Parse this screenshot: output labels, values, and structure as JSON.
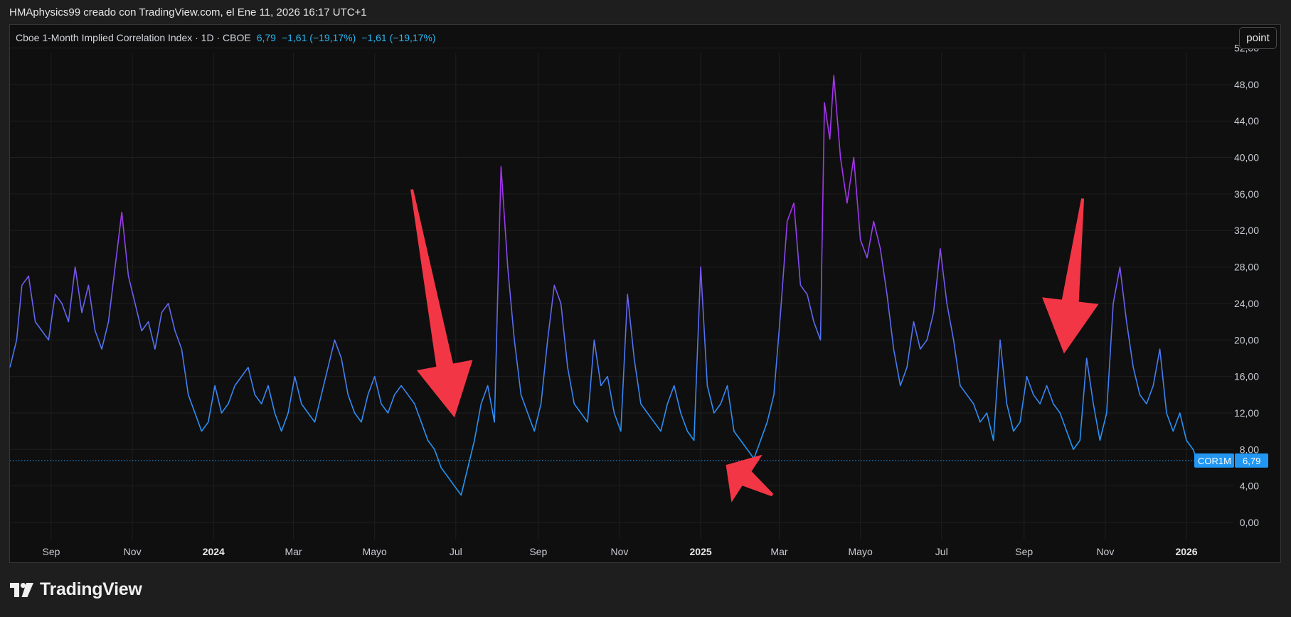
{
  "attribution": "HMAphysics99 creado con TradingView.com, el Ene 11, 2026 16:17 UTC+1",
  "legend": {
    "symbol": "Cboe 1-Month Implied Correlation Index · 1D · CBOE",
    "last": "6,79",
    "change": "−1,61 (−19,17%)",
    "change2": "−1,61 (−19,17%)"
  },
  "point_button": "point",
  "price_tag": {
    "ticker": "COR1M",
    "value": "6,79"
  },
  "footer_logo": "TradingView",
  "colors": {
    "low": "#2196f3",
    "mid": "#5b6cf0",
    "high": "#a434ee",
    "arrow": "#f23645",
    "tag": "#2196f3"
  },
  "chart_data": {
    "type": "line",
    "title": "",
    "ylim": [
      0,
      52
    ],
    "y_ticks": [
      "0,00",
      "4,00",
      "8,00",
      "12,00",
      "16,00",
      "20,00",
      "24,00",
      "28,00",
      "32,00",
      "36,00",
      "40,00",
      "44,00",
      "48,00",
      "52,00"
    ],
    "x_ticks": [
      {
        "label": "Sep",
        "date": "2023-09-01",
        "bold": false
      },
      {
        "label": "Nov",
        "date": "2023-11-01",
        "bold": false
      },
      {
        "label": "2024",
        "date": "2024-01-01",
        "bold": true
      },
      {
        "label": "Mar",
        "date": "2024-03-01",
        "bold": false
      },
      {
        "label": "Mayo",
        "date": "2024-05-01",
        "bold": false
      },
      {
        "label": "Jul",
        "date": "2024-07-01",
        "bold": false
      },
      {
        "label": "Sep",
        "date": "2024-09-01",
        "bold": false
      },
      {
        "label": "Nov",
        "date": "2024-11-01",
        "bold": false
      },
      {
        "label": "2025",
        "date": "2025-01-01",
        "bold": true
      },
      {
        "label": "Mar",
        "date": "2025-03-01",
        "bold": false
      },
      {
        "label": "Mayo",
        "date": "2025-05-01",
        "bold": false
      },
      {
        "label": "Jul",
        "date": "2025-07-01",
        "bold": false
      },
      {
        "label": "Sep",
        "date": "2025-09-01",
        "bold": false
      },
      {
        "label": "Nov",
        "date": "2025-11-01",
        "bold": false
      },
      {
        "label": "2026",
        "date": "2026-01-01",
        "bold": true
      }
    ],
    "series": [
      {
        "x": [
          "2023-08-01",
          "2023-08-06",
          "2023-08-10",
          "2023-08-15",
          "2023-08-20",
          "2023-08-25",
          "2023-08-30",
          "2023-09-04",
          "2023-09-09",
          "2023-09-14",
          "2023-09-19",
          "2023-09-24",
          "2023-09-29",
          "2023-10-04",
          "2023-10-09",
          "2023-10-14",
          "2023-10-19",
          "2023-10-24",
          "2023-10-29",
          "2023-11-03",
          "2023-11-08",
          "2023-11-13",
          "2023-11-18",
          "2023-11-23",
          "2023-11-28",
          "2023-12-03",
          "2023-12-08",
          "2023-12-13",
          "2023-12-18",
          "2023-12-23",
          "2023-12-28",
          "2024-01-02",
          "2024-01-07",
          "2024-01-12",
          "2024-01-17",
          "2024-01-22",
          "2024-01-27",
          "2024-02-01",
          "2024-02-06",
          "2024-02-11",
          "2024-02-16",
          "2024-02-21",
          "2024-02-26",
          "2024-03-02",
          "2024-03-07",
          "2024-03-12",
          "2024-03-17",
          "2024-03-22",
          "2024-03-27",
          "2024-04-01",
          "2024-04-06",
          "2024-04-11",
          "2024-04-16",
          "2024-04-21",
          "2024-04-26",
          "2024-05-01",
          "2024-05-06",
          "2024-05-11",
          "2024-05-16",
          "2024-05-21",
          "2024-05-26",
          "2024-05-31",
          "2024-06-05",
          "2024-06-10",
          "2024-06-15",
          "2024-06-20",
          "2024-06-25",
          "2024-06-30",
          "2024-07-05",
          "2024-07-10",
          "2024-07-15",
          "2024-07-20",
          "2024-07-25",
          "2024-07-30",
          "2024-08-04",
          "2024-08-09",
          "2024-08-14",
          "2024-08-19",
          "2024-08-24",
          "2024-08-29",
          "2024-09-03",
          "2024-09-08",
          "2024-09-13",
          "2024-09-18",
          "2024-09-23",
          "2024-09-28",
          "2024-10-03",
          "2024-10-08",
          "2024-10-13",
          "2024-10-18",
          "2024-10-23",
          "2024-10-28",
          "2024-11-02",
          "2024-11-07",
          "2024-11-12",
          "2024-11-17",
          "2024-11-22",
          "2024-11-27",
          "2024-12-02",
          "2024-12-07",
          "2024-12-12",
          "2024-12-17",
          "2024-12-22",
          "2024-12-27",
          "2025-01-01",
          "2025-01-06",
          "2025-01-11",
          "2025-01-16",
          "2025-01-21",
          "2025-01-26",
          "2025-01-31",
          "2025-02-05",
          "2025-02-10",
          "2025-02-15",
          "2025-02-20",
          "2025-02-25",
          "2025-03-02",
          "2025-03-07",
          "2025-03-12",
          "2025-03-17",
          "2025-03-22",
          "2025-03-27",
          "2025-04-01",
          "2025-04-04",
          "2025-04-08",
          "2025-04-11",
          "2025-04-16",
          "2025-04-21",
          "2025-04-26",
          "2025-05-01",
          "2025-05-06",
          "2025-05-11",
          "2025-05-16",
          "2025-05-21",
          "2025-05-26",
          "2025-05-31",
          "2025-06-05",
          "2025-06-10",
          "2025-06-15",
          "2025-06-20",
          "2025-06-25",
          "2025-06-30",
          "2025-07-05",
          "2025-07-10",
          "2025-07-15",
          "2025-07-20",
          "2025-07-25",
          "2025-07-30",
          "2025-08-04",
          "2025-08-09",
          "2025-08-14",
          "2025-08-19",
          "2025-08-24",
          "2025-08-29",
          "2025-09-03",
          "2025-09-08",
          "2025-09-13",
          "2025-09-18",
          "2025-09-23",
          "2025-09-28",
          "2025-10-03",
          "2025-10-08",
          "2025-10-13",
          "2025-10-18",
          "2025-10-23",
          "2025-10-28",
          "2025-11-02",
          "2025-11-07",
          "2025-11-12",
          "2025-11-17",
          "2025-11-22",
          "2025-11-27",
          "2025-12-02",
          "2025-12-07",
          "2025-12-12",
          "2025-12-17",
          "2025-12-22",
          "2025-12-27",
          "2026-01-01",
          "2026-01-06",
          "2026-01-09"
        ],
        "y": [
          17,
          20,
          26,
          27,
          22,
          21,
          20,
          25,
          24,
          22,
          28,
          23,
          26,
          21,
          19,
          22,
          28,
          34,
          27,
          24,
          21,
          22,
          19,
          23,
          24,
          21,
          19,
          14,
          12,
          10,
          11,
          15,
          12,
          13,
          15,
          16,
          17,
          14,
          13,
          15,
          12,
          10,
          12,
          16,
          13,
          12,
          11,
          14,
          17,
          20,
          18,
          14,
          12,
          11,
          14,
          16,
          13,
          12,
          14,
          15,
          14,
          13,
          11,
          9,
          8,
          6,
          5,
          4,
          3,
          6,
          9,
          13,
          15,
          11,
          39,
          28,
          20,
          14,
          12,
          10,
          13,
          20,
          26,
          24,
          17,
          13,
          12,
          11,
          20,
          15,
          16,
          12,
          10,
          25,
          18,
          13,
          12,
          11,
          10,
          13,
          15,
          12,
          10,
          9,
          28,
          15,
          12,
          13,
          15,
          10,
          9,
          8,
          7,
          9,
          11,
          14,
          23,
          33,
          35,
          26,
          25,
          22,
          20,
          46,
          42,
          49,
          40,
          35,
          40,
          31,
          29,
          33,
          30,
          25,
          19,
          15,
          17,
          22,
          19,
          20,
          23,
          30,
          24,
          20,
          15,
          14,
          13,
          11,
          12,
          9,
          20,
          13,
          10,
          11,
          16,
          14,
          13,
          15,
          13,
          12,
          10,
          8,
          9,
          18,
          13,
          9,
          12,
          24,
          28,
          22,
          17,
          14,
          13,
          15,
          19,
          12,
          10,
          12,
          9,
          8,
          6.79
        ]
      }
    ]
  },
  "annotations": [
    {
      "label": "arrow-1",
      "from": [
        "2024-05-29",
        36.5
      ],
      "to": [
        "2024-06-30",
        11.5
      ]
    },
    {
      "label": "arrow-2",
      "from": [
        "2025-02-24",
        3
      ],
      "to": [
        "2025-01-20",
        6.3
      ]
    },
    {
      "label": "arrow-3",
      "from": [
        "2025-10-15",
        35.5
      ],
      "to": [
        "2025-10-01",
        18.5
      ]
    }
  ]
}
